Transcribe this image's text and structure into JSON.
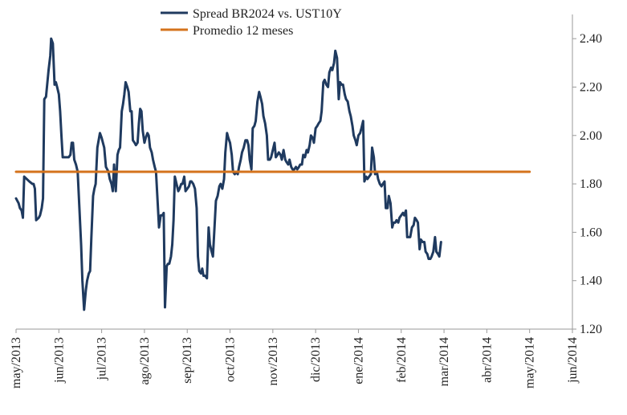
{
  "chart_data": {
    "type": "line",
    "title": "",
    "xlabel": "",
    "ylabel": "",
    "ylim": [
      1.2,
      2.5
    ],
    "y_ticks": [
      1.2,
      1.4,
      1.6,
      1.8,
      2.0,
      2.2,
      2.4
    ],
    "y_tick_labels": [
      "1.20",
      "1.40",
      "1.60",
      "1.80",
      "2.00",
      "2.20",
      "2.40"
    ],
    "y_axis_side": "right",
    "x_domain": [
      0,
      13
    ],
    "x_ticks": [
      0,
      1,
      2,
      3,
      4,
      5,
      6,
      7,
      8,
      9,
      10,
      11,
      12,
      13
    ],
    "x_tick_labels": [
      "may/2013",
      "jun/2013",
      "jul/2013",
      "ago/2013",
      "sep/2013",
      "oct/2013",
      "nov/2013",
      "dic/2013",
      "ene/2014",
      "feb/2014",
      "mar/2014",
      "abr/2014",
      "may/2014",
      "jun/2014"
    ],
    "legend_position": "top-center",
    "grid": false,
    "series": [
      {
        "name": "Spread BR2024 vs. UST10Y",
        "color": "#1f3a5f",
        "points": [
          [
            0.0,
            1.74
          ],
          [
            0.06,
            1.72
          ],
          [
            0.09,
            1.7
          ],
          [
            0.13,
            1.69
          ],
          [
            0.16,
            1.66
          ],
          [
            0.19,
            1.83
          ],
          [
            0.25,
            1.82
          ],
          [
            0.31,
            1.81
          ],
          [
            0.38,
            1.8
          ],
          [
            0.41,
            1.8
          ],
          [
            0.44,
            1.78
          ],
          [
            0.47,
            1.65
          ],
          [
            0.53,
            1.66
          ],
          [
            0.56,
            1.67
          ],
          [
            0.6,
            1.7
          ],
          [
            0.63,
            1.74
          ],
          [
            0.66,
            2.15
          ],
          [
            0.7,
            2.16
          ],
          [
            0.76,
            2.27
          ],
          [
            0.8,
            2.33
          ],
          [
            0.82,
            2.4
          ],
          [
            0.86,
            2.38
          ],
          [
            0.9,
            2.21
          ],
          [
            0.93,
            2.22
          ],
          [
            0.96,
            2.2
          ],
          [
            1.0,
            2.17
          ],
          [
            1.03,
            2.1
          ],
          [
            1.06,
            2.0
          ],
          [
            1.09,
            1.91
          ],
          [
            1.13,
            1.91
          ],
          [
            1.19,
            1.91
          ],
          [
            1.23,
            1.91
          ],
          [
            1.27,
            1.92
          ],
          [
            1.3,
            1.97
          ],
          [
            1.33,
            1.97
          ],
          [
            1.36,
            1.9
          ],
          [
            1.4,
            1.88
          ],
          [
            1.44,
            1.85
          ],
          [
            1.48,
            1.7
          ],
          [
            1.52,
            1.55
          ],
          [
            1.55,
            1.4
          ],
          [
            1.59,
            1.28
          ],
          [
            1.63,
            1.36
          ],
          [
            1.66,
            1.4
          ],
          [
            1.7,
            1.43
          ],
          [
            1.73,
            1.44
          ],
          [
            1.76,
            1.58
          ],
          [
            1.8,
            1.75
          ],
          [
            1.83,
            1.78
          ],
          [
            1.86,
            1.8
          ],
          [
            1.9,
            1.95
          ],
          [
            1.93,
            1.98
          ],
          [
            1.96,
            2.01
          ],
          [
            2.0,
            1.99
          ],
          [
            2.03,
            1.97
          ],
          [
            2.06,
            1.95
          ],
          [
            2.1,
            1.87
          ],
          [
            2.13,
            1.86
          ],
          [
            2.16,
            1.85
          ],
          [
            2.19,
            1.82
          ],
          [
            2.23,
            1.8
          ],
          [
            2.26,
            1.77
          ],
          [
            2.29,
            1.88
          ],
          [
            2.33,
            1.77
          ],
          [
            2.37,
            1.92
          ],
          [
            2.4,
            1.94
          ],
          [
            2.43,
            1.95
          ],
          [
            2.47,
            2.1
          ],
          [
            2.5,
            2.13
          ],
          [
            2.53,
            2.17
          ],
          [
            2.56,
            2.22
          ],
          [
            2.6,
            2.2
          ],
          [
            2.63,
            2.18
          ],
          [
            2.67,
            2.1
          ],
          [
            2.7,
            2.1
          ],
          [
            2.73,
            1.98
          ],
          [
            2.77,
            1.97
          ],
          [
            2.8,
            1.96
          ],
          [
            2.84,
            1.97
          ],
          [
            2.87,
            2.05
          ],
          [
            2.9,
            2.11
          ],
          [
            2.93,
            2.1
          ],
          [
            2.96,
            2.02
          ],
          [
            3.0,
            1.97
          ],
          [
            3.03,
            1.99
          ],
          [
            3.07,
            2.01
          ],
          [
            3.1,
            2.0
          ],
          [
            3.13,
            1.95
          ],
          [
            3.17,
            1.93
          ],
          [
            3.2,
            1.9
          ],
          [
            3.24,
            1.87
          ],
          [
            3.27,
            1.85
          ],
          [
            3.31,
            1.72
          ],
          [
            3.34,
            1.62
          ],
          [
            3.38,
            1.67
          ],
          [
            3.42,
            1.67
          ],
          [
            3.45,
            1.68
          ],
          [
            3.48,
            1.29
          ],
          [
            3.52,
            1.46
          ],
          [
            3.55,
            1.47
          ],
          [
            3.58,
            1.47
          ],
          [
            3.62,
            1.5
          ],
          [
            3.65,
            1.55
          ],
          [
            3.68,
            1.65
          ],
          [
            3.71,
            1.83
          ],
          [
            3.75,
            1.8
          ],
          [
            3.79,
            1.77
          ],
          [
            3.82,
            1.78
          ],
          [
            3.86,
            1.8
          ],
          [
            3.89,
            1.8
          ],
          [
            3.93,
            1.83
          ],
          [
            3.96,
            1.77
          ],
          [
            4.0,
            1.78
          ],
          [
            4.04,
            1.79
          ],
          [
            4.07,
            1.81
          ],
          [
            4.1,
            1.81
          ],
          [
            4.14,
            1.8
          ],
          [
            4.18,
            1.78
          ],
          [
            4.22,
            1.7
          ],
          [
            4.25,
            1.5
          ],
          [
            4.28,
            1.44
          ],
          [
            4.32,
            1.43
          ],
          [
            4.35,
            1.45
          ],
          [
            4.38,
            1.42
          ],
          [
            4.42,
            1.42
          ],
          [
            4.46,
            1.41
          ],
          [
            4.5,
            1.62
          ],
          [
            4.53,
            1.55
          ],
          [
            4.57,
            1.52
          ],
          [
            4.6,
            1.5
          ],
          [
            4.64,
            1.63
          ],
          [
            4.67,
            1.73
          ],
          [
            4.71,
            1.75
          ],
          [
            4.75,
            1.79
          ],
          [
            4.78,
            1.8
          ],
          [
            4.82,
            1.78
          ],
          [
            4.86,
            1.82
          ],
          [
            4.89,
            1.93
          ],
          [
            4.93,
            2.01
          ],
          [
            4.96,
            1.99
          ],
          [
            5.0,
            1.97
          ],
          [
            5.04,
            1.92
          ],
          [
            5.07,
            1.85
          ],
          [
            5.11,
            1.84
          ],
          [
            5.14,
            1.85
          ],
          [
            5.18,
            1.84
          ],
          [
            5.21,
            1.87
          ],
          [
            5.25,
            1.9
          ],
          [
            5.28,
            1.93
          ],
          [
            5.32,
            1.95
          ],
          [
            5.36,
            1.98
          ],
          [
            5.4,
            1.98
          ],
          [
            5.43,
            1.96
          ],
          [
            5.46,
            1.9
          ],
          [
            5.5,
            1.86
          ],
          [
            5.53,
            2.03
          ],
          [
            5.57,
            2.04
          ],
          [
            5.6,
            2.06
          ],
          [
            5.64,
            2.14
          ],
          [
            5.68,
            2.18
          ],
          [
            5.71,
            2.16
          ],
          [
            5.75,
            2.13
          ],
          [
            5.78,
            2.08
          ],
          [
            5.82,
            2.05
          ],
          [
            5.86,
            2.0
          ],
          [
            5.89,
            1.9
          ],
          [
            5.93,
            1.9
          ],
          [
            5.96,
            1.91
          ],
          [
            6.0,
            1.94
          ],
          [
            6.04,
            1.97
          ],
          [
            6.07,
            1.91
          ],
          [
            6.11,
            1.92
          ],
          [
            6.14,
            1.93
          ],
          [
            6.18,
            1.92
          ],
          [
            6.21,
            1.9
          ],
          [
            6.25,
            1.94
          ],
          [
            6.29,
            1.9
          ],
          [
            6.32,
            1.89
          ],
          [
            6.36,
            1.88
          ],
          [
            6.39,
            1.9
          ],
          [
            6.43,
            1.87
          ],
          [
            6.46,
            1.86
          ],
          [
            6.5,
            1.86
          ],
          [
            6.54,
            1.87
          ],
          [
            6.57,
            1.86
          ],
          [
            6.61,
            1.87
          ],
          [
            6.64,
            1.88
          ],
          [
            6.68,
            1.88
          ],
          [
            6.71,
            1.92
          ],
          [
            6.75,
            1.91
          ],
          [
            6.79,
            1.94
          ],
          [
            6.82,
            1.93
          ],
          [
            6.86,
            1.96
          ],
          [
            6.89,
            2.0
          ],
          [
            6.93,
            1.99
          ],
          [
            6.96,
            1.97
          ],
          [
            7.0,
            2.03
          ],
          [
            7.04,
            2.04
          ],
          [
            7.07,
            2.05
          ],
          [
            7.11,
            2.06
          ],
          [
            7.14,
            2.1
          ],
          [
            7.18,
            2.22
          ],
          [
            7.21,
            2.23
          ],
          [
            7.25,
            2.21
          ],
          [
            7.29,
            2.2
          ],
          [
            7.32,
            2.26
          ],
          [
            7.36,
            2.28
          ],
          [
            7.39,
            2.27
          ],
          [
            7.43,
            2.3
          ],
          [
            7.46,
            2.35
          ],
          [
            7.5,
            2.32
          ],
          [
            7.54,
            2.15
          ],
          [
            7.57,
            2.22
          ],
          [
            7.61,
            2.21
          ],
          [
            7.64,
            2.21
          ],
          [
            7.68,
            2.17
          ],
          [
            7.71,
            2.15
          ],
          [
            7.75,
            2.14
          ],
          [
            7.79,
            2.1
          ],
          [
            7.82,
            2.08
          ],
          [
            7.86,
            2.04
          ],
          [
            7.89,
            2.0
          ],
          [
            7.93,
            1.98
          ],
          [
            7.96,
            1.96
          ],
          [
            8.0,
            2.0
          ],
          [
            8.04,
            2.01
          ],
          [
            8.07,
            2.03
          ],
          [
            8.11,
            2.06
          ],
          [
            8.14,
            1.81
          ],
          [
            8.18,
            1.83
          ],
          [
            8.21,
            1.82
          ],
          [
            8.25,
            1.83
          ],
          [
            8.29,
            1.84
          ],
          [
            8.32,
            1.95
          ],
          [
            8.36,
            1.91
          ],
          [
            8.39,
            1.84
          ],
          [
            8.43,
            1.85
          ],
          [
            8.46,
            1.82
          ],
          [
            8.5,
            1.8
          ],
          [
            8.54,
            1.79
          ],
          [
            8.57,
            1.8
          ],
          [
            8.61,
            1.81
          ],
          [
            8.64,
            1.7
          ],
          [
            8.68,
            1.7
          ],
          [
            8.71,
            1.75
          ],
          [
            8.75,
            1.72
          ],
          [
            8.79,
            1.62
          ],
          [
            8.82,
            1.64
          ],
          [
            8.86,
            1.64
          ],
          [
            8.89,
            1.65
          ],
          [
            8.93,
            1.64
          ],
          [
            8.96,
            1.66
          ],
          [
            9.0,
            1.67
          ],
          [
            9.04,
            1.68
          ],
          [
            9.07,
            1.67
          ],
          [
            9.11,
            1.69
          ],
          [
            9.14,
            1.58
          ],
          [
            9.18,
            1.58
          ],
          [
            9.21,
            1.58
          ],
          [
            9.25,
            1.62
          ],
          [
            9.29,
            1.63
          ],
          [
            9.32,
            1.66
          ],
          [
            9.36,
            1.65
          ],
          [
            9.39,
            1.64
          ],
          [
            9.43,
            1.53
          ],
          [
            9.46,
            1.57
          ],
          [
            9.5,
            1.56
          ],
          [
            9.54,
            1.56
          ],
          [
            9.57,
            1.52
          ],
          [
            9.61,
            1.51
          ],
          [
            9.64,
            1.49
          ],
          [
            9.68,
            1.49
          ],
          [
            9.71,
            1.5
          ],
          [
            9.75,
            1.52
          ],
          [
            9.79,
            1.58
          ],
          [
            9.82,
            1.52
          ],
          [
            9.86,
            1.51
          ],
          [
            9.89,
            1.5
          ],
          [
            9.93,
            1.56
          ]
        ]
      },
      {
        "name": "Promedio 12 meses",
        "color": "#d4731c",
        "points": [
          [
            0.0,
            1.85
          ],
          [
            12.0,
            1.85
          ]
        ]
      }
    ]
  }
}
